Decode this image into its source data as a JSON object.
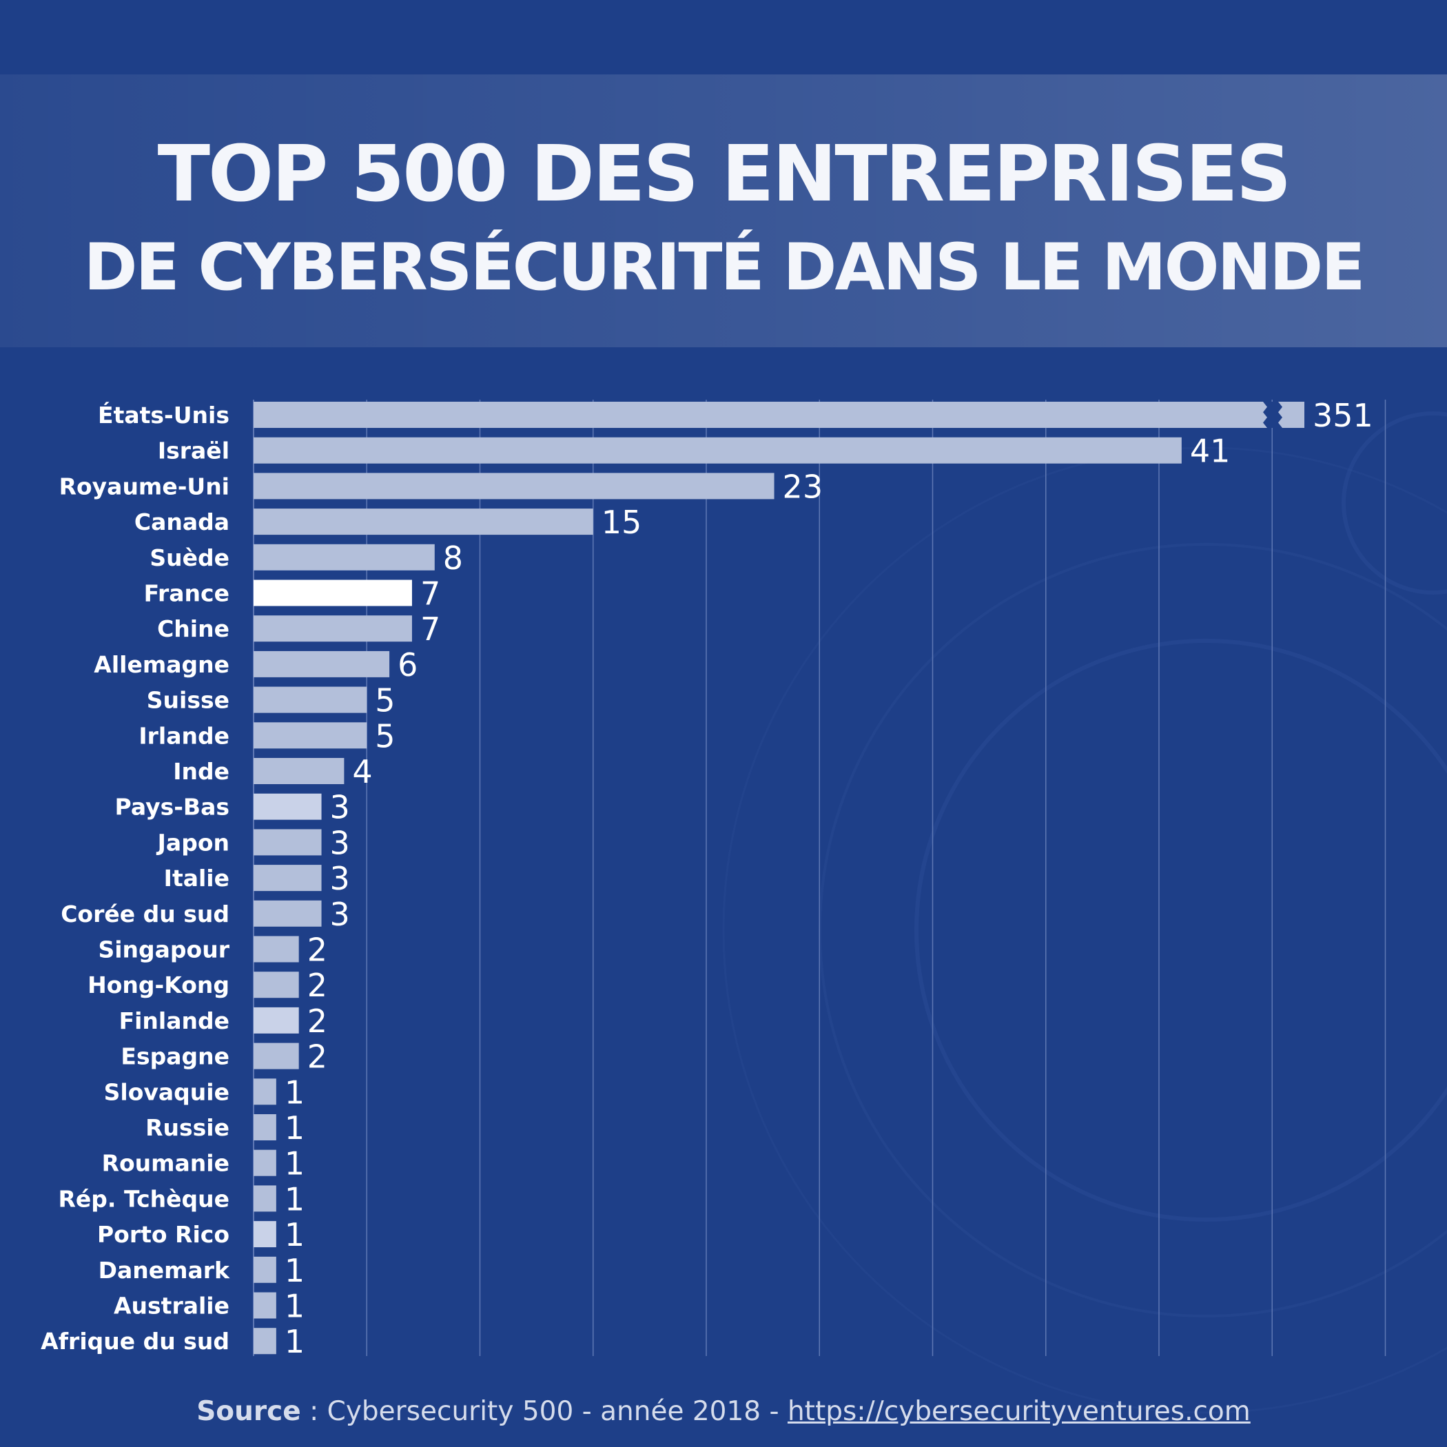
{
  "title": {
    "line1": "TOP 500 DES ENTREPRISES",
    "line2": "DE CYBERSÉCURITÉ DANS LE MONDE"
  },
  "footer": {
    "source_label": "Source",
    "separator": " : ",
    "source_text": "Cybersecurity 500 - année 2018 - ",
    "source_url": "https://cybersecurityventures.com"
  },
  "colors": {
    "background": "#1e3f88",
    "bar": "#b3bfda",
    "bar_highlight": "#ffffff",
    "bar_light": "#c9d2e8",
    "grid": "#5f78b4"
  },
  "chart_data": {
    "type": "bar",
    "orientation": "horizontal",
    "axis_break": "États-Unis",
    "highlight": "France",
    "grid": true,
    "categories": [
      "États-Unis",
      "Israël",
      "Royaume-Uni",
      "Canada",
      "Suède",
      "France",
      "Chine",
      "Allemagne",
      "Suisse",
      "Irlande",
      "Inde",
      "Pays-Bas",
      "Japon",
      "Italie",
      "Corée du sud",
      "Singapour",
      "Hong-Kong",
      "Finlande",
      "Espagne",
      "Slovaquie",
      "Russie",
      "Roumanie",
      "Rép. Tchèque",
      "Porto Rico",
      "Danemark",
      "Australie",
      "Afrique du sud"
    ],
    "values": [
      351,
      41,
      23,
      15,
      8,
      7,
      7,
      6,
      5,
      5,
      4,
      3,
      3,
      3,
      3,
      2,
      2,
      2,
      2,
      1,
      1,
      1,
      1,
      1,
      1,
      1,
      1
    ]
  }
}
